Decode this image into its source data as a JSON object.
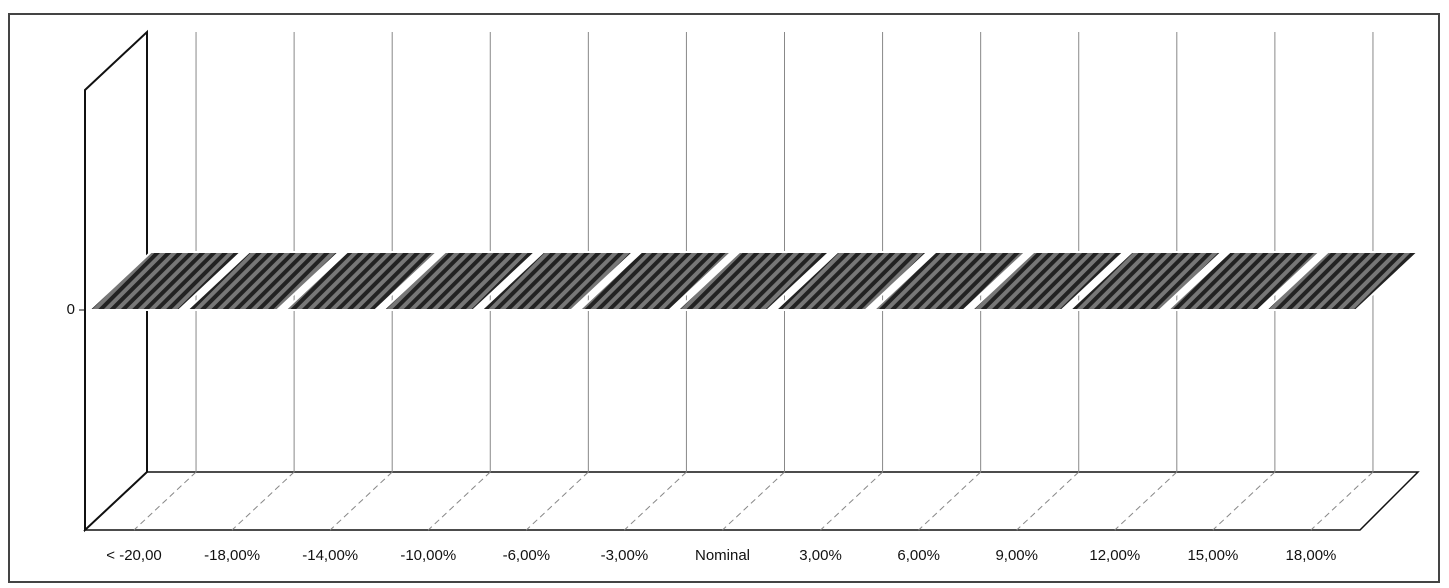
{
  "chart_data": {
    "type": "bar3d",
    "categories": [
      "< -20,00",
      "-18,00%",
      "-14,00%",
      "-10,00%",
      "-6,00%",
      "-3,00%",
      "Nominal",
      "3,00%",
      "6,00%",
      "9,00%",
      "12,00%",
      "15,00%",
      "18,00%"
    ],
    "values": [
      0,
      0,
      0,
      0,
      0,
      0,
      0,
      0,
      0,
      0,
      0,
      0,
      0
    ],
    "color": "#333333",
    "ylim": [
      -1,
      1
    ],
    "yticks": [
      0
    ],
    "grid": true
  }
}
